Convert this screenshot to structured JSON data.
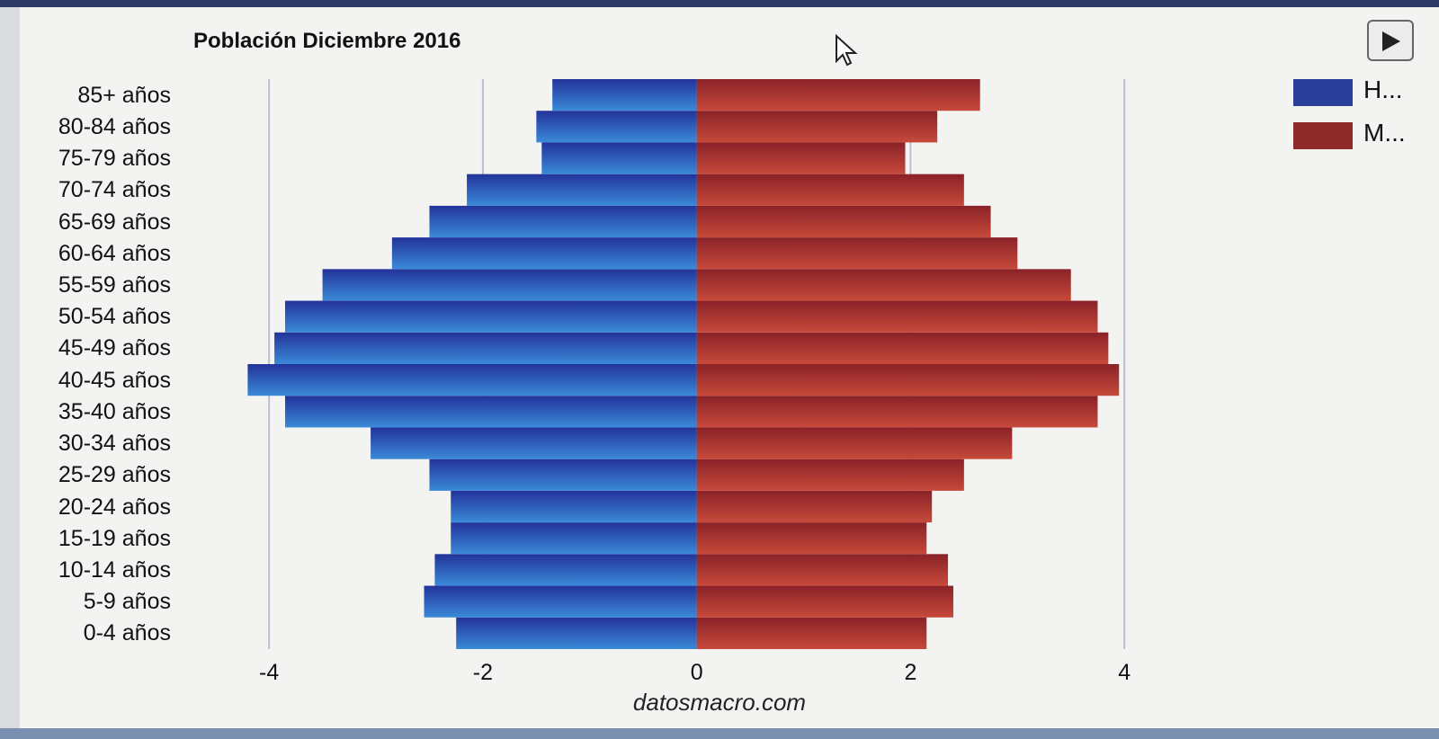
{
  "chart_data": {
    "type": "bar",
    "orientation": "horizontal",
    "title": "Población Diciembre 2016",
    "categories": [
      "0-4 años",
      "5-9 años",
      "10-14 años",
      "15-19 años",
      "20-24 años",
      "25-29 años",
      "30-34 años",
      "35-40 años",
      "40-45 años",
      "45-49 años",
      "50-54 años",
      "55-59 años",
      "60-64 años",
      "65-69 años",
      "70-74 años",
      "75-79 años",
      "80-84 años",
      "85+ años"
    ],
    "series": [
      {
        "name": "H...",
        "color": "#2848a8",
        "values": [
          -2.25,
          -2.55,
          -2.45,
          -2.3,
          -2.3,
          -2.5,
          -3.05,
          -3.85,
          -4.2,
          -3.95,
          -3.85,
          -3.5,
          -2.85,
          -2.5,
          -2.15,
          -1.45,
          -1.5,
          -1.35
        ]
      },
      {
        "name": "M...",
        "color": "#9a2d2b",
        "values": [
          2.15,
          2.4,
          2.35,
          2.15,
          2.2,
          2.5,
          2.95,
          3.75,
          3.95,
          3.85,
          3.75,
          3.5,
          3.0,
          2.75,
          2.5,
          1.95,
          2.25,
          2.65
        ]
      }
    ],
    "xticks": [
      "-4",
      "-2",
      "0",
      "2",
      "4"
    ],
    "xlim": [
      -4.75,
      5.05
    ],
    "grid": true,
    "legend_position": "top-right"
  },
  "source": "datosmacro.com",
  "controls": {
    "play_icon": "play-icon"
  }
}
